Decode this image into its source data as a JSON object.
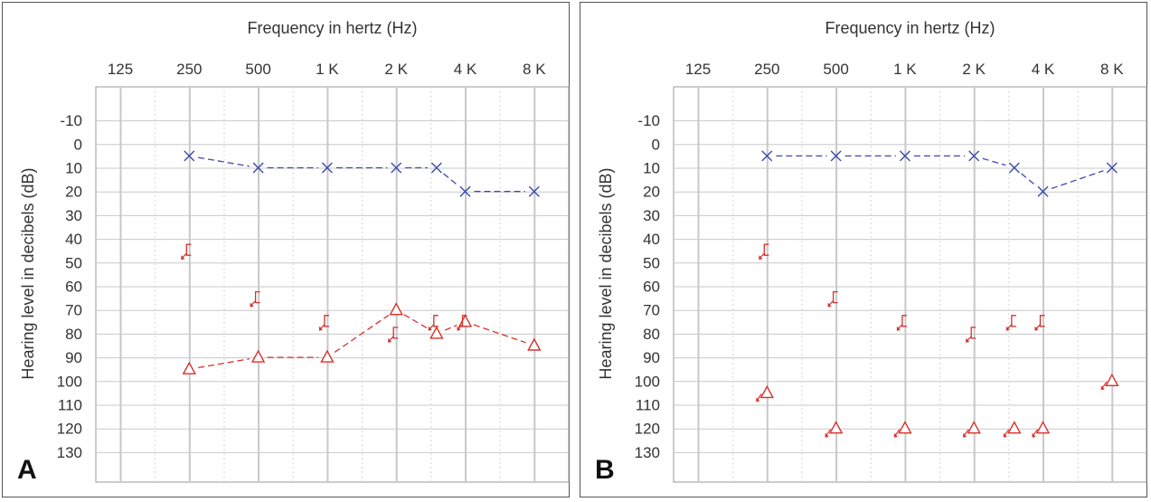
{
  "panels": [
    {
      "letter": "A",
      "xlabel": "Frequency in hertz (Hz)",
      "ylabel": "Hearing level in decibels (dB)",
      "x_ticks": [
        "125",
        "250",
        "500",
        "1 K",
        "2 K",
        "4 K",
        "8 K"
      ],
      "y_ticks": [
        "-10",
        "0",
        "10",
        "20",
        "30",
        "40",
        "50",
        "60",
        "70",
        "80",
        "90",
        "100",
        "110",
        "120",
        "130"
      ]
    },
    {
      "letter": "B",
      "xlabel": "Frequency in hertz (Hz)",
      "ylabel": "Hearing level in decibels (dB)",
      "x_ticks": [
        "125",
        "250",
        "500",
        "1 K",
        "2 K",
        "4 K",
        "8 K"
      ],
      "y_ticks": [
        "-10",
        "0",
        "10",
        "20",
        "30",
        "40",
        "50",
        "60",
        "70",
        "80",
        "90",
        "100",
        "110",
        "120",
        "130"
      ]
    }
  ],
  "colors": {
    "left_ear": "#3b4aa8",
    "right_ear": "#d8302a",
    "grid": "#c8c8c8"
  },
  "chart_data": [
    {
      "type": "scatter",
      "title": "",
      "xlabel": "Frequency in hertz (Hz)",
      "ylabel": "Hearing level in decibels (dB)",
      "x_scale": "log2",
      "xlim": [
        125,
        8000
      ],
      "ylim": [
        -20,
        140
      ],
      "y_inverted": true,
      "grid": true,
      "series": [
        {
          "marker": "x",
          "connected": true,
          "color": "#3b4aa8",
          "points": [
            [
              250,
              5
            ],
            [
              500,
              10
            ],
            [
              1000,
              10
            ],
            [
              2000,
              10
            ],
            [
              3000,
              10
            ],
            [
              4000,
              20
            ],
            [
              8000,
              20
            ]
          ]
        },
        {
          "marker": "triangle",
          "connected": true,
          "color": "#d8302a",
          "points": [
            [
              250,
              95
            ],
            [
              500,
              90
            ],
            [
              1000,
              90
            ],
            [
              2000,
              70
            ],
            [
              3000,
              80
            ],
            [
              4000,
              75
            ],
            [
              8000,
              85
            ]
          ]
        },
        {
          "marker": "bone-conduction-bracket",
          "connected": false,
          "color": "#d8302a",
          "points": [
            [
              250,
              45
            ],
            [
              500,
              65
            ],
            [
              1000,
              75
            ],
            [
              2000,
              80
            ],
            [
              3000,
              75
            ],
            [
              4000,
              75
            ]
          ]
        }
      ]
    },
    {
      "type": "scatter",
      "title": "",
      "xlabel": "Frequency in hertz (Hz)",
      "ylabel": "Hearing level in decibels (dB)",
      "x_scale": "log2",
      "xlim": [
        125,
        8000
      ],
      "ylim": [
        -20,
        140
      ],
      "y_inverted": true,
      "grid": true,
      "series": [
        {
          "marker": "x",
          "connected": true,
          "color": "#3b4aa8",
          "points": [
            [
              250,
              5
            ],
            [
              500,
              5
            ],
            [
              1000,
              5
            ],
            [
              2000,
              5
            ],
            [
              3000,
              10
            ],
            [
              4000,
              20
            ],
            [
              8000,
              10
            ]
          ]
        },
        {
          "marker": "triangle-with-arrow",
          "connected": false,
          "color": "#d8302a",
          "points": [
            [
              250,
              105
            ],
            [
              500,
              120
            ],
            [
              1000,
              120
            ],
            [
              2000,
              120
            ],
            [
              3000,
              120
            ],
            [
              4000,
              120
            ],
            [
              8000,
              100
            ]
          ]
        },
        {
          "marker": "bone-conduction-bracket",
          "connected": false,
          "color": "#d8302a",
          "points": [
            [
              250,
              45
            ],
            [
              500,
              65
            ],
            [
              1000,
              75
            ],
            [
              2000,
              80
            ],
            [
              3000,
              75
            ],
            [
              4000,
              75
            ]
          ]
        }
      ]
    }
  ]
}
